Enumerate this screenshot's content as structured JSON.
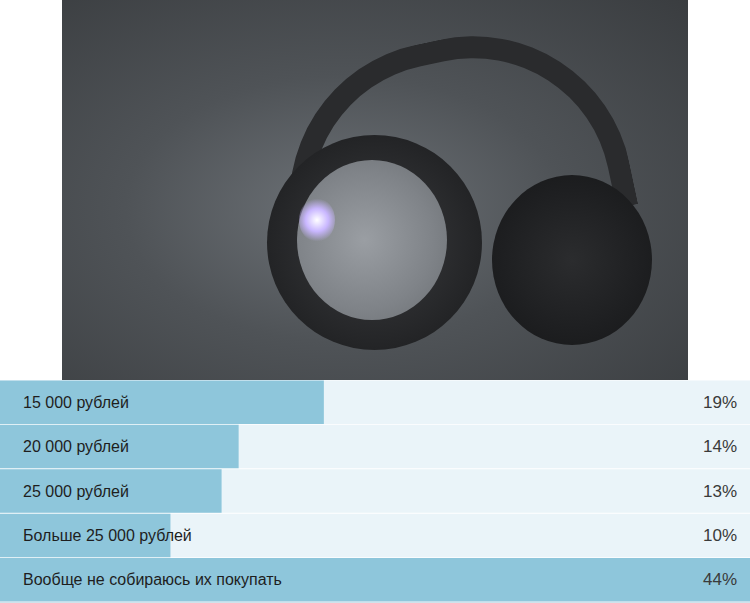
{
  "chart_data": {
    "type": "bar",
    "orientation": "horizontal",
    "categories": [
      "15 000 рублей",
      "20 000 рублей",
      "25 000 рублей",
      "Больше 25 000 рублей",
      "Вообще не собираюсь их покупать"
    ],
    "values": [
      19,
      14,
      13,
      10,
      44
    ],
    "value_labels": [
      "19%",
      "14%",
      "13%",
      "10%",
      "44%"
    ],
    "data_labels": true,
    "color": "#8ec6db",
    "xlim": [
      0,
      44
    ],
    "xticks": [],
    "grid": false
  }
}
